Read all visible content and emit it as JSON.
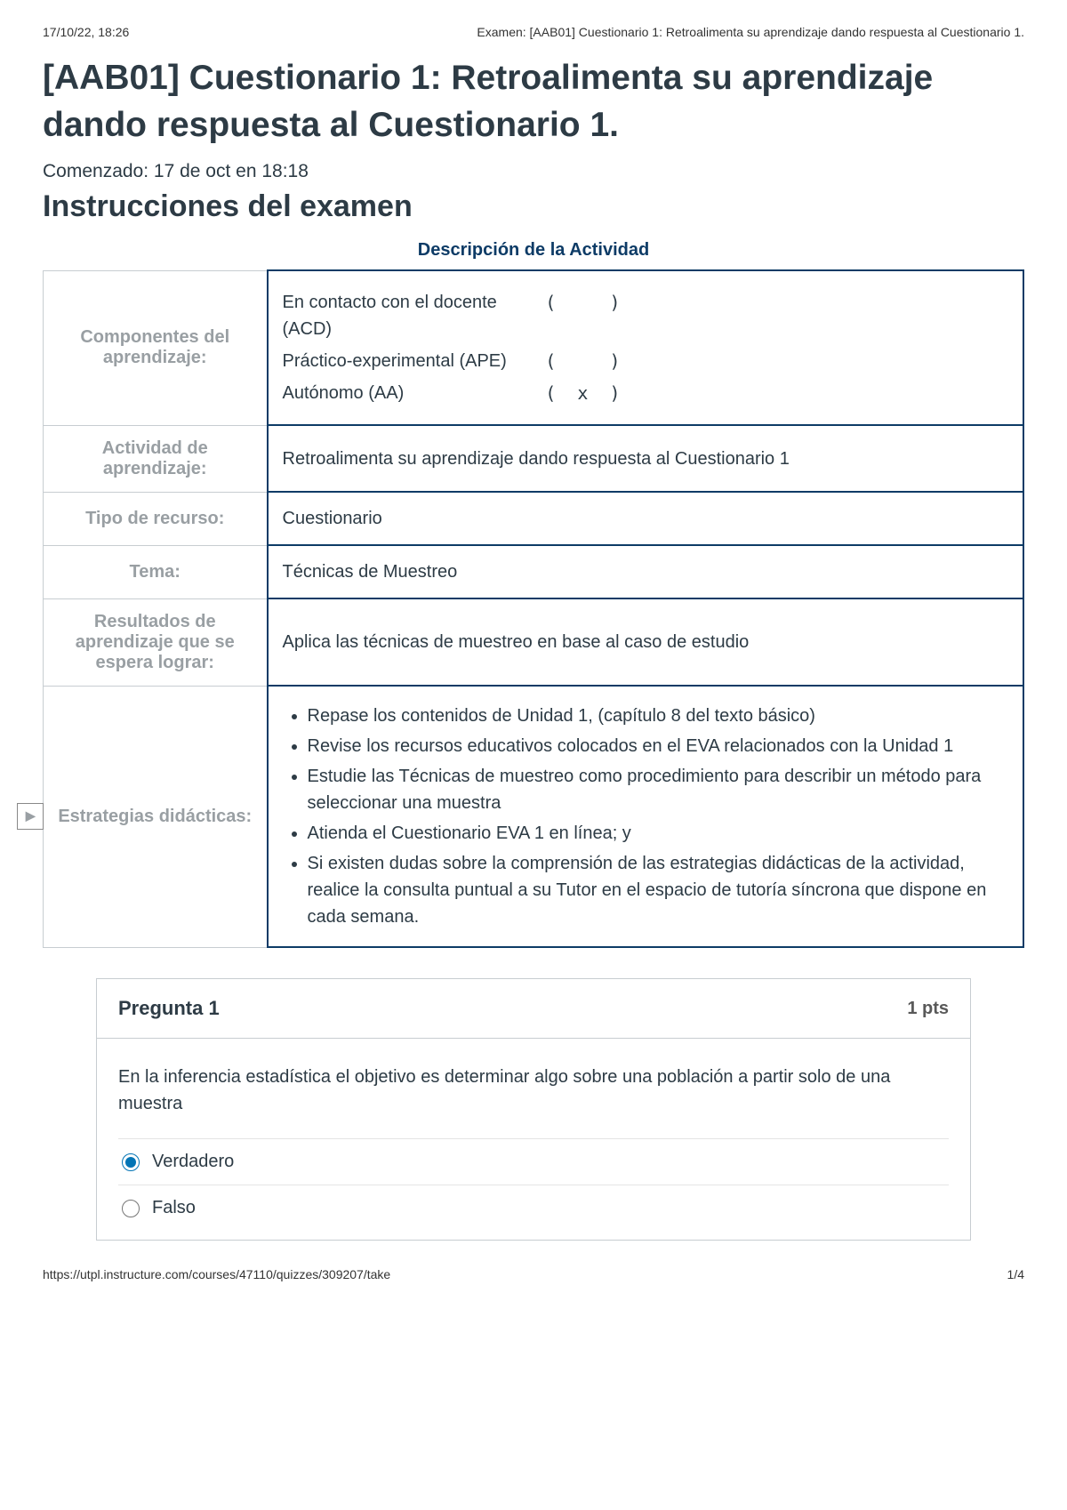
{
  "print_header": {
    "datetime": "17/10/22, 18:26",
    "doc_title": "Examen: [AAB01] Cuestionario 1: Retroalimenta su aprendizaje dando respuesta al Cuestionario 1."
  },
  "title": "[AAB01] Cuestionario 1: Retroalimenta su aprendizaje dando respuesta al Cuestionario 1.",
  "started_line": "Comenzado: 17 de oct en 18:18",
  "instructions_heading": "Instrucciones del examen",
  "activity_caption": "Descripción de la Actividad",
  "table_rows": {
    "componentes_label": "Componentes del aprendizaje:",
    "componentes": [
      {
        "name": "En contacto con el docente (ACD)",
        "mark": "(     )"
      },
      {
        "name": "Práctico-experimental (APE)",
        "mark": "(     )"
      },
      {
        "name": "Autónomo (AA)",
        "mark": "(  x  )"
      }
    ],
    "actividad_label": "Actividad de aprendizaje:",
    "actividad_value": "Retroalimenta su aprendizaje dando respuesta al Cuestionario 1",
    "tipo_label": "Tipo de recurso:",
    "tipo_value": "Cuestionario",
    "tema_label": "Tema:",
    "tema_value": "Técnicas de Muestreo",
    "resultados_label": "Resultados de aprendizaje que se espera lograr:",
    "resultados_value": "Aplica las técnicas de muestreo en base al caso de estudio",
    "estrategias_label": "Estrategias didácticas:",
    "estrategias_items": [
      "Repase los contenidos de Unidad 1, (capítulo 8 del texto básico)",
      "Revise los recursos educativos colocados en el EVA relacionados con la Unidad 1",
      "Estudie las Técnicas de muestreo como procedimiento para describir un método para seleccionar una muestra",
      "Atienda el Cuestionario EVA 1 en línea; y",
      "Si existen dudas sobre la comprensión de las estrategias didácticas de la actividad, realice la consulta puntual a su Tutor en el espacio de tutoría síncrona que dispone en cada semana."
    ]
  },
  "play_icon_glyph": "▶",
  "question": {
    "title": "Pregunta 1",
    "points": "1 pts",
    "text": "En la inferencia estadística el objetivo es determinar algo sobre una población a partir solo de una muestra",
    "answers": [
      {
        "label": "Verdadero",
        "checked": true
      },
      {
        "label": "Falso",
        "checked": false
      }
    ]
  },
  "print_footer": {
    "url": "https://utpl.instructure.com/courses/47110/quizzes/309207/take",
    "page": "1/4"
  },
  "colors": {
    "text_main": "#2d3b45",
    "header_muted": "#999fa3",
    "border_gray": "#c7cdd1",
    "border_navy": "#0d3b66",
    "caption_navy": "#0d3b66",
    "radio_accent": "#0374b5"
  },
  "typography": {
    "title_fontsize": 39,
    "h2_fontsize": 34,
    "body_fontsize": 20,
    "small_fontsize": 14
  }
}
